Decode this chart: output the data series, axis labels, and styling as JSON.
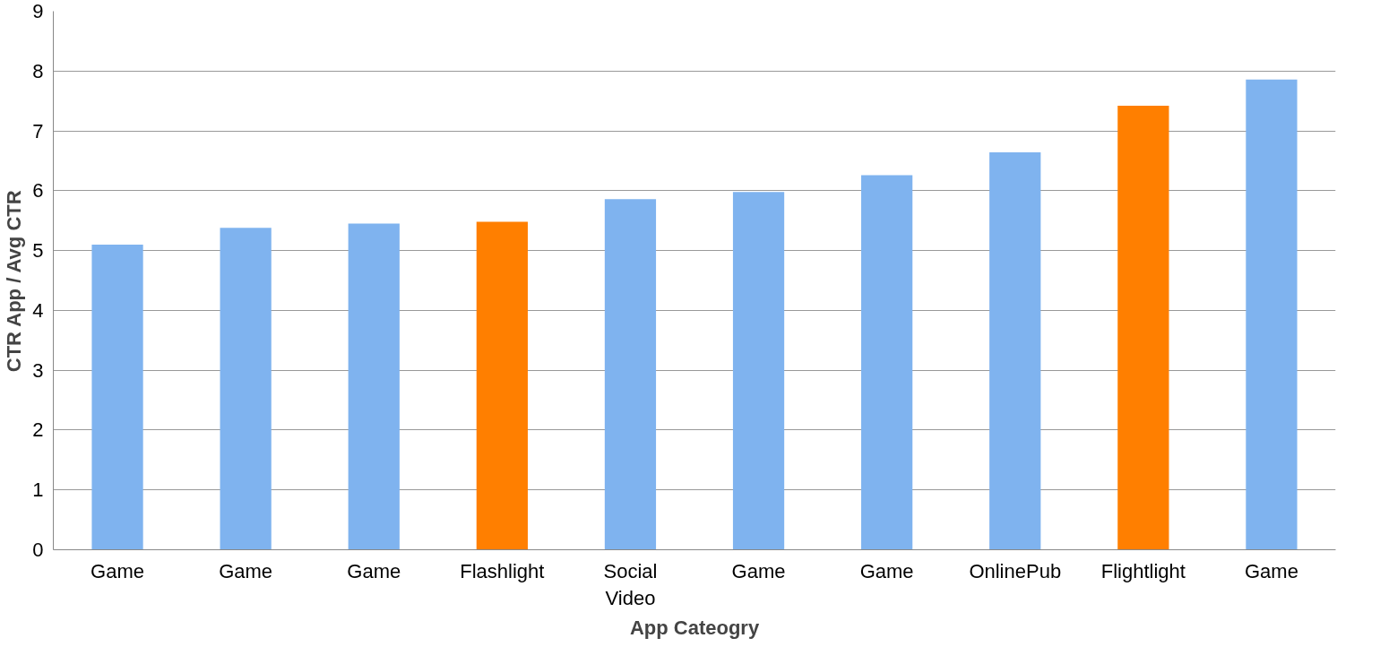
{
  "chart_data": {
    "type": "bar",
    "xlabel": "App Cateogry",
    "ylabel": "CTR App / Avg CTR",
    "categories": [
      "Game",
      "Game",
      "Game",
      "Flashlight",
      "Social Video",
      "Game",
      "Game",
      "OnlinePub",
      "Flightlight",
      "Game"
    ],
    "values": [
      5.1,
      5.38,
      5.45,
      5.48,
      5.86,
      5.98,
      6.26,
      6.64,
      7.42,
      7.86
    ],
    "colors": [
      "#7fb3ef",
      "#7fb3ef",
      "#7fb3ef",
      "#ff7f00",
      "#7fb3ef",
      "#7fb3ef",
      "#7fb3ef",
      "#7fb3ef",
      "#ff7f00",
      "#7fb3ef"
    ],
    "ylim": [
      0,
      9
    ],
    "yticks": [
      0,
      1,
      2,
      3,
      4,
      5,
      6,
      7,
      8,
      9
    ],
    "grid": "y"
  }
}
